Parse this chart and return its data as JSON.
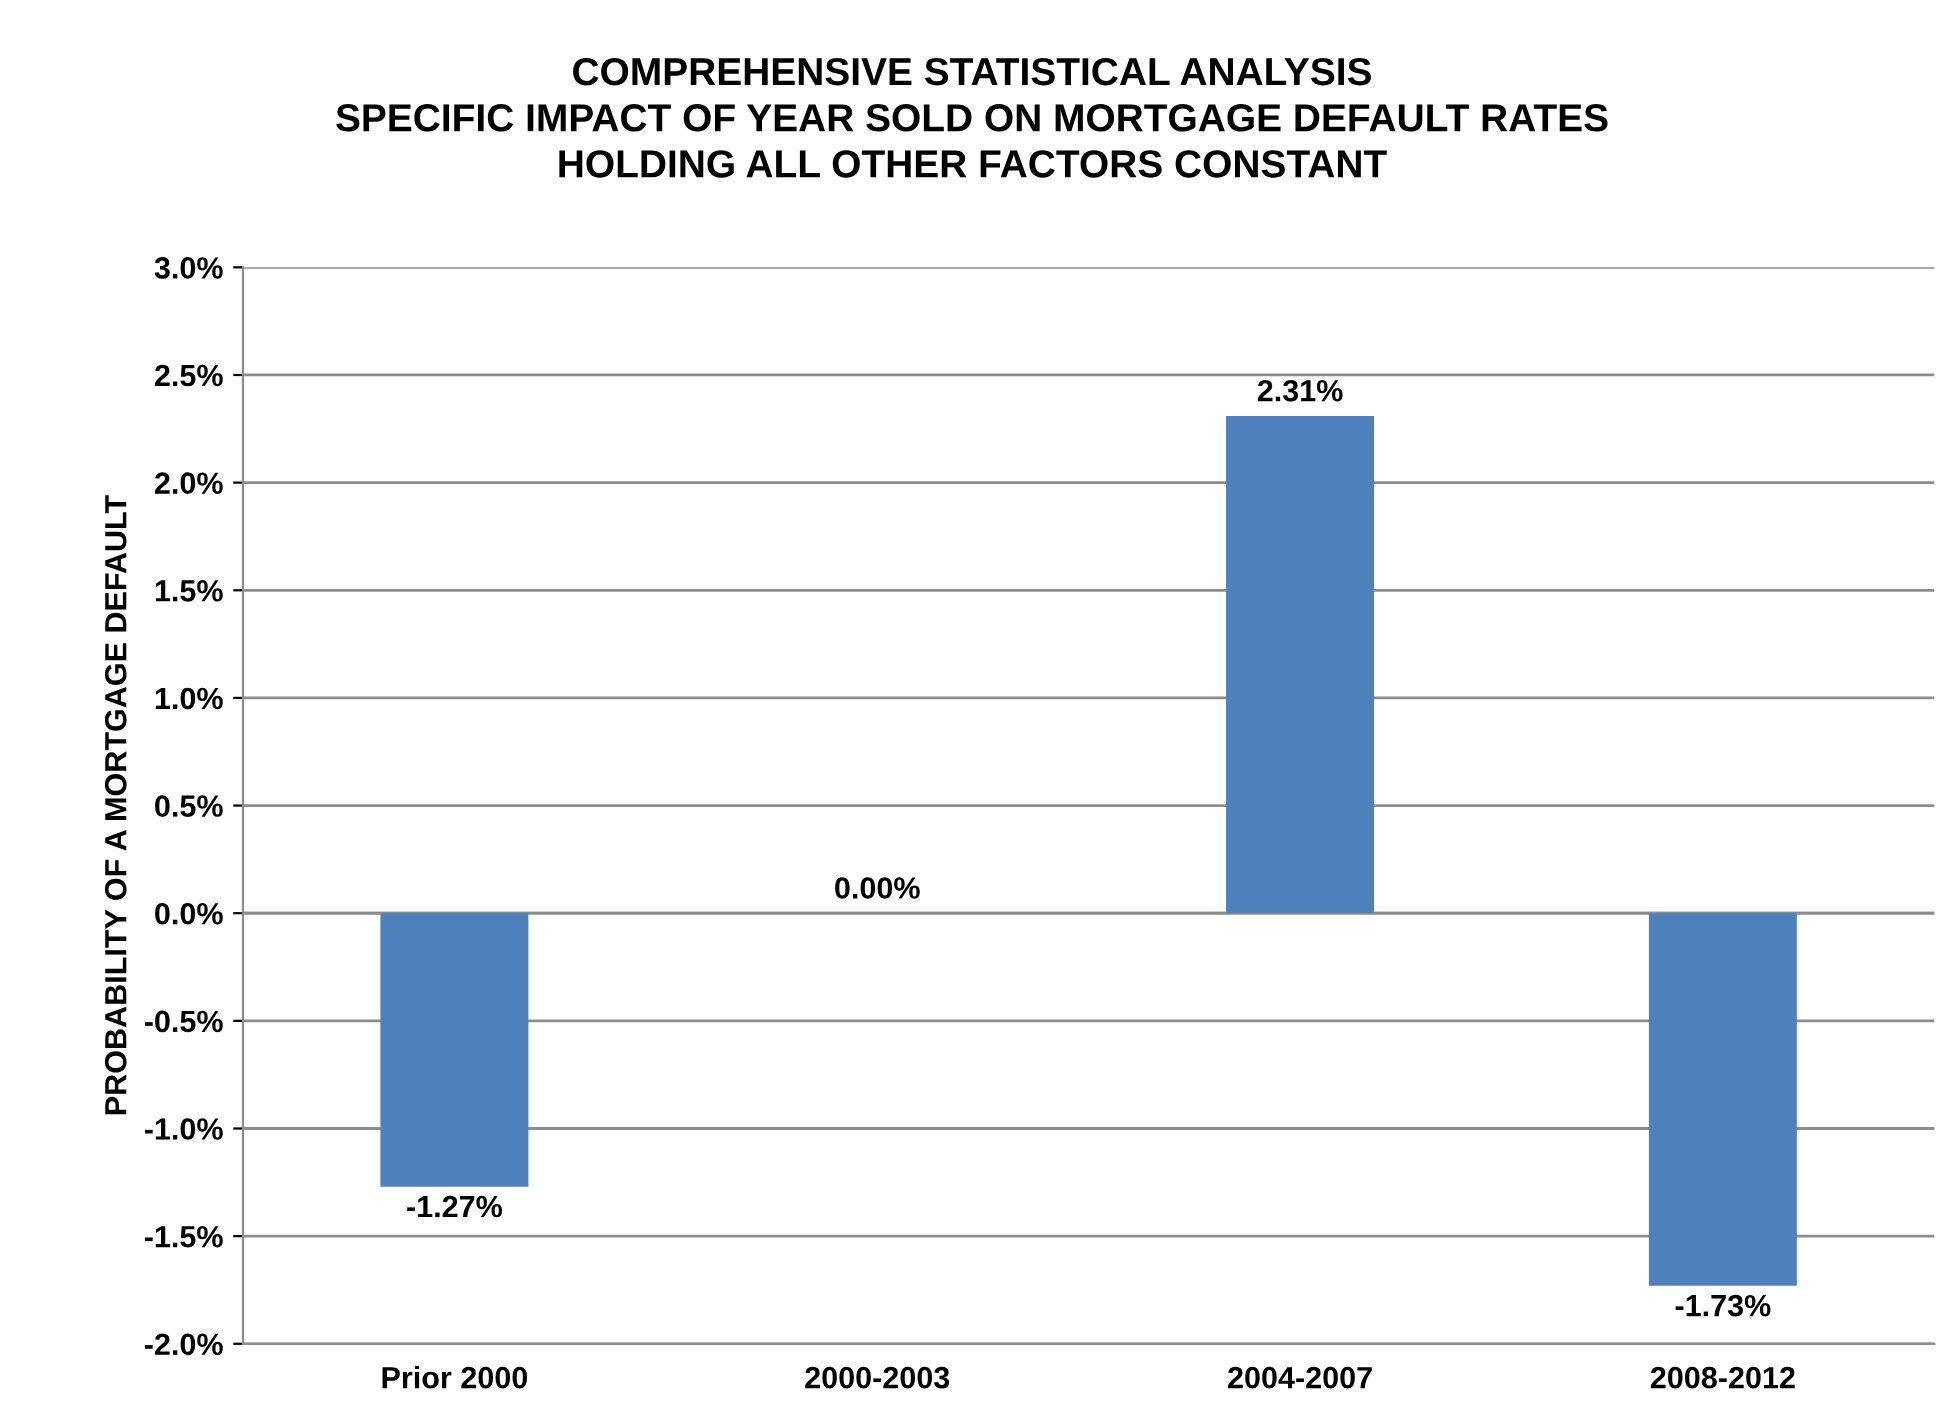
{
  "chart_data": {
    "type": "bar",
    "title": "COMPREHENSIVE STATISTICAL ANALYSIS\nSPECIFIC IMPACT OF YEAR SOLD ON MORTGAGE DEFAULT RATES\nHOLDING ALL OTHER FACTORS CONSTANT",
    "ylabel": "PROBABILITY OF A MORTGAGE DEFAULT",
    "categories": [
      "Prior 2000",
      "2000-2003",
      "2004-2007",
      "2008-2012"
    ],
    "values": [
      -1.27,
      0.0,
      2.31,
      -1.73
    ],
    "value_labels": [
      "-1.27%",
      "0.00%",
      "2.31%",
      "-1.73%"
    ],
    "color": "#4f81bd",
    "ylim": [
      -2.0,
      3.0
    ],
    "yticks": [
      {
        "value": -2.0,
        "label": "-2.0%"
      },
      {
        "value": -1.5,
        "label": "-1.5%"
      },
      {
        "value": -1.0,
        "label": "-1.0%"
      },
      {
        "value": -0.5,
        "label": "-0.5%"
      },
      {
        "value": 0.0,
        "label": "0.0%"
      },
      {
        "value": 0.5,
        "label": "0.5%"
      },
      {
        "value": 1.0,
        "label": "1.0%"
      },
      {
        "value": 1.5,
        "label": "1.5%"
      },
      {
        "value": 2.0,
        "label": "2.0%"
      },
      {
        "value": 2.5,
        "label": "2.5%"
      },
      {
        "value": 3.0,
        "label": "3.0%"
      }
    ],
    "grid": "y"
  }
}
